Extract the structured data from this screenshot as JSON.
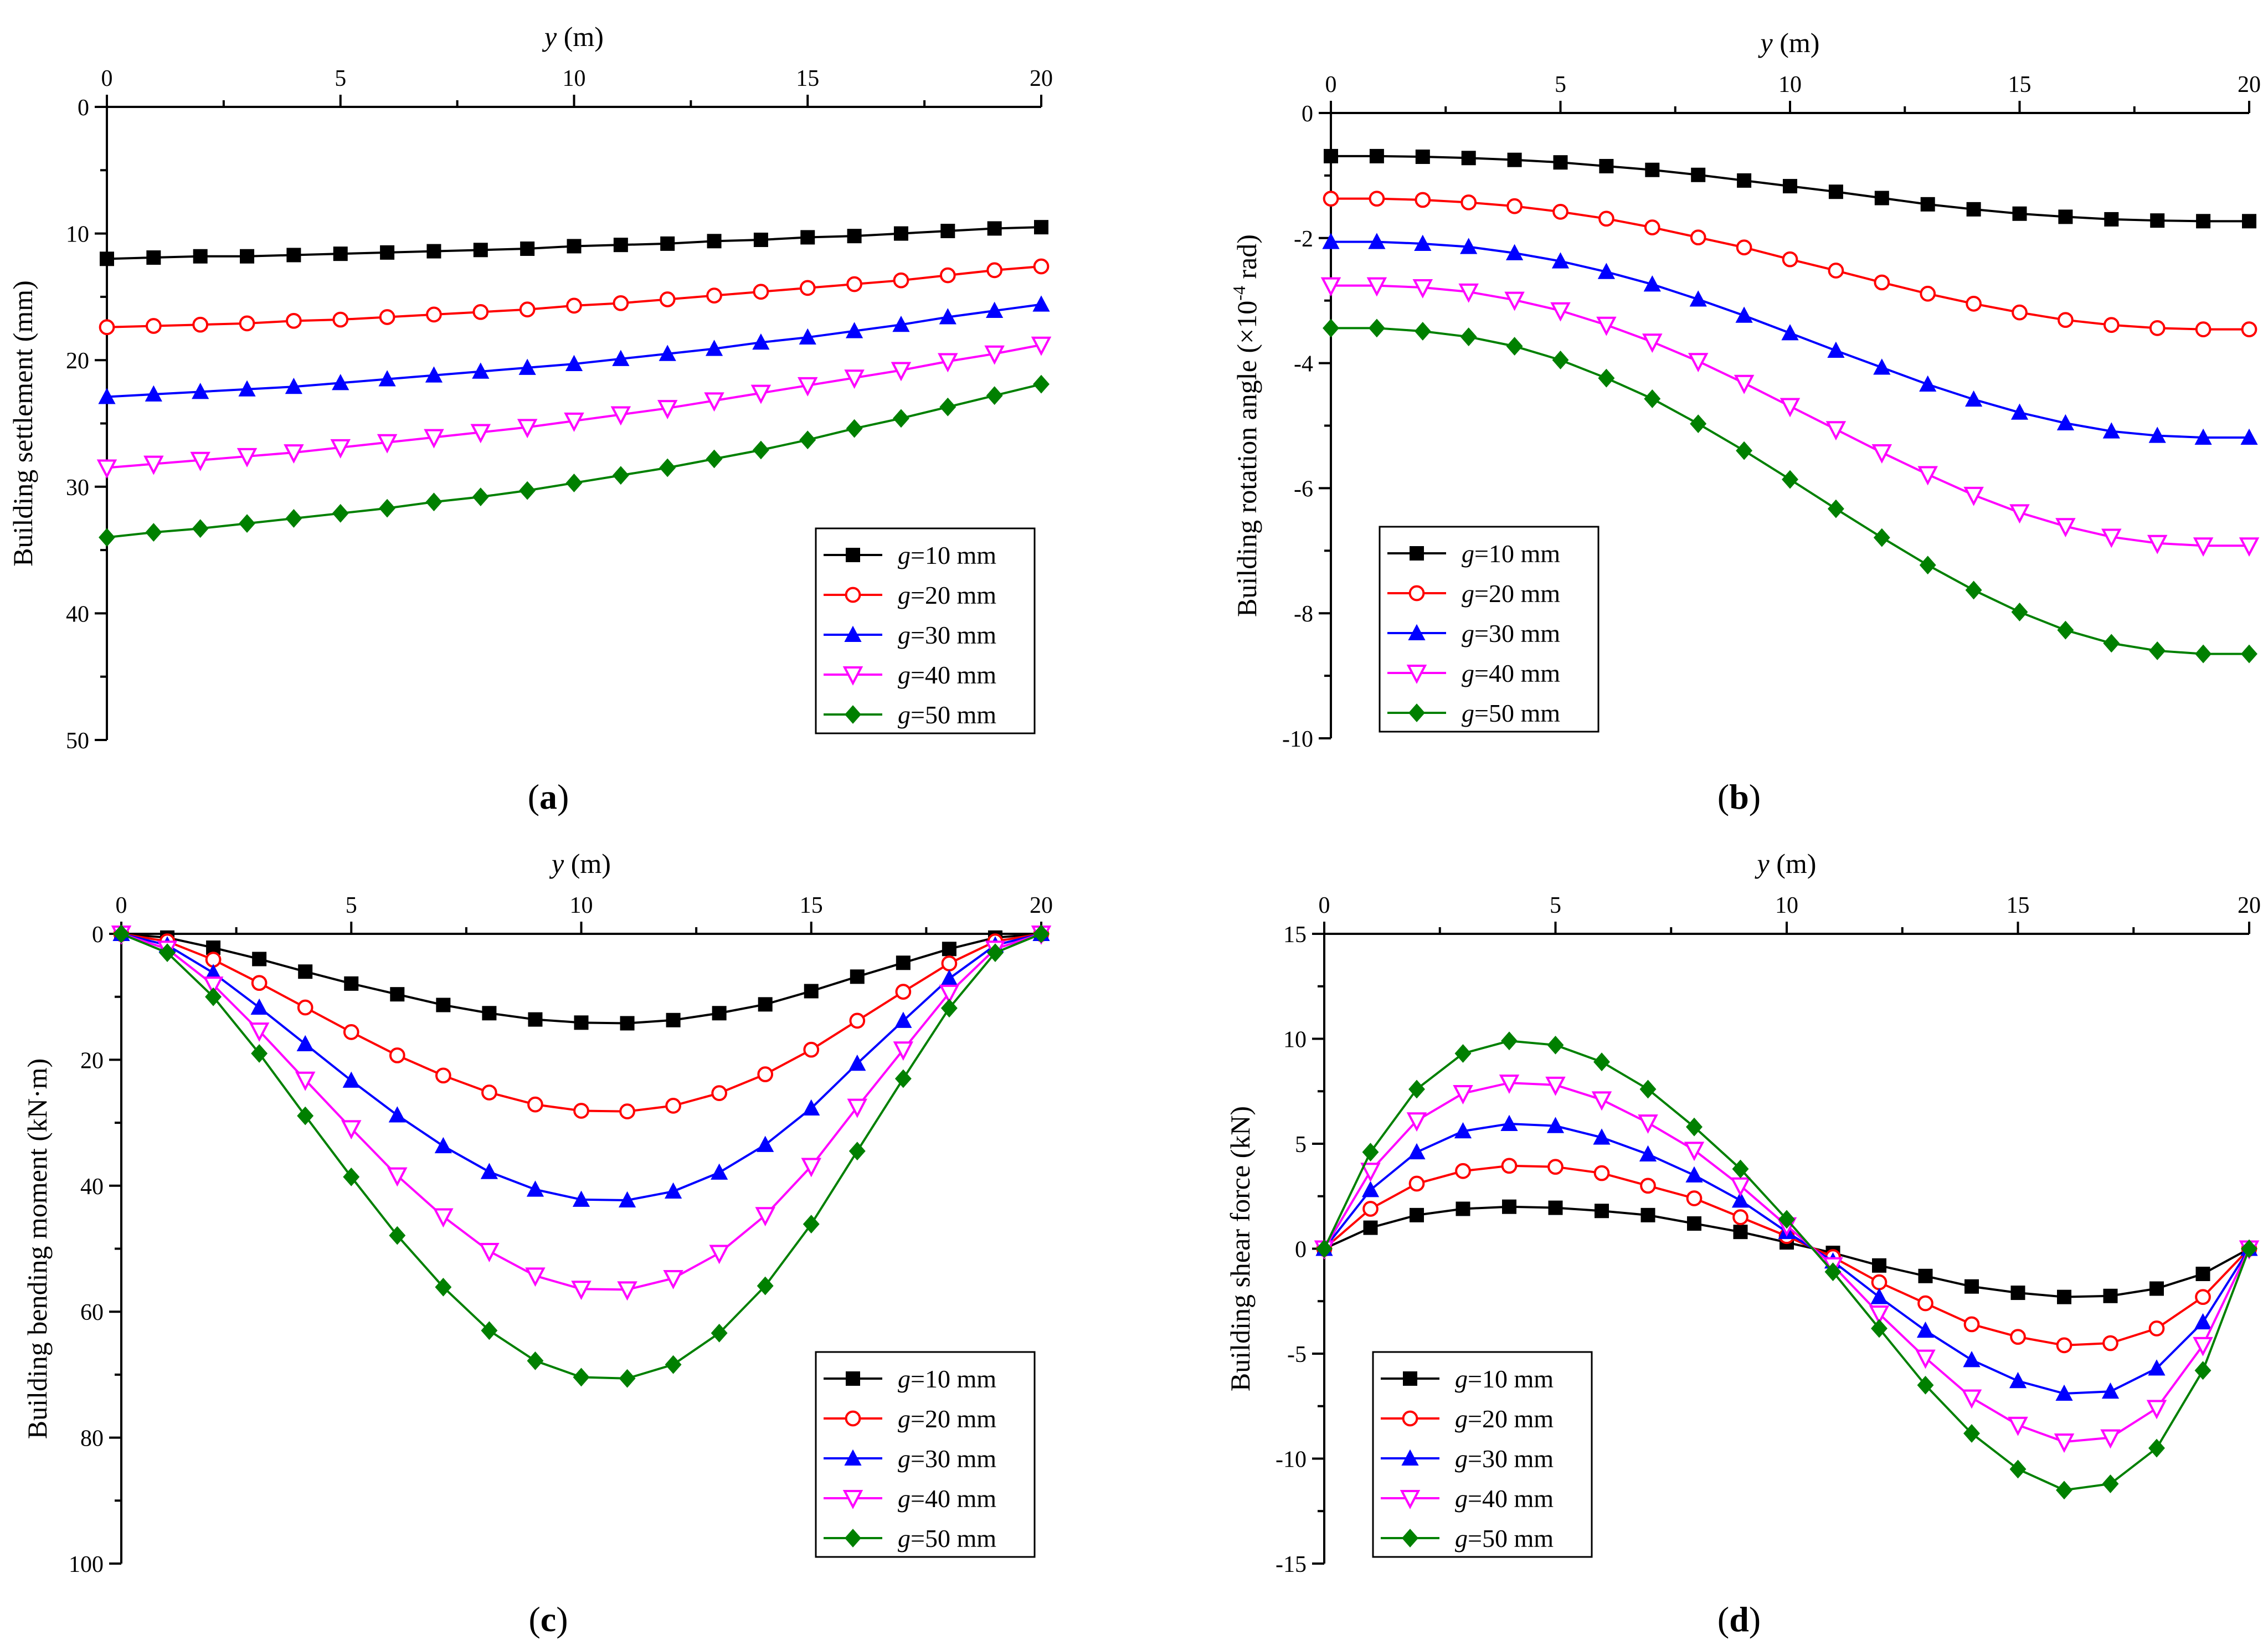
{
  "chart_data": [
    {
      "type": "line",
      "panel_label": "a",
      "title": "",
      "xlabel": "y",
      "xunit": " (m)",
      "ylabel": "Building settlement (mm)",
      "xlim": [
        0,
        20
      ],
      "ylim": [
        0,
        50
      ],
      "y_inverted": true,
      "x_ticks": [
        0,
        5,
        10,
        15,
        20
      ],
      "y_ticks": [
        0,
        10,
        20,
        30,
        40,
        50
      ],
      "legend_position": "bottom-right",
      "x": [
        0,
        1,
        2,
        3,
        4,
        5,
        6,
        7,
        8,
        9,
        10,
        11,
        12,
        13,
        14,
        15,
        16,
        17,
        18,
        19,
        20
      ],
      "series": [
        {
          "name": "g",
          "name_rest": "=10 mm",
          "color": "#000000",
          "marker": "square",
          "values": [
            12.0,
            11.9,
            11.8,
            11.8,
            11.7,
            11.6,
            11.5,
            11.4,
            11.3,
            11.2,
            11.0,
            10.9,
            10.8,
            10.6,
            10.5,
            10.3,
            10.2,
            10.0,
            9.8,
            9.6,
            9.5
          ]
        },
        {
          "name": "g",
          "name_rest": "=20 mm",
          "color": "#ff0000",
          "marker": "circle",
          "values": [
            17.4,
            17.3,
            17.2,
            17.1,
            16.9,
            16.8,
            16.6,
            16.4,
            16.2,
            16.0,
            15.7,
            15.5,
            15.2,
            14.9,
            14.6,
            14.3,
            14.0,
            13.7,
            13.3,
            12.9,
            12.6
          ]
        },
        {
          "name": "g",
          "name_rest": "=30 mm",
          "color": "#0000ff",
          "marker": "triangle-up",
          "values": [
            22.9,
            22.7,
            22.5,
            22.3,
            22.1,
            21.8,
            21.5,
            21.2,
            20.9,
            20.6,
            20.3,
            19.9,
            19.5,
            19.1,
            18.6,
            18.2,
            17.7,
            17.2,
            16.6,
            16.1,
            15.6
          ]
        },
        {
          "name": "g",
          "name_rest": "=40 mm",
          "color": "#ff00ff",
          "marker": "triangle-down",
          "values": [
            28.5,
            28.2,
            27.9,
            27.6,
            27.3,
            26.9,
            26.5,
            26.1,
            25.7,
            25.3,
            24.8,
            24.3,
            23.8,
            23.2,
            22.6,
            22.0,
            21.4,
            20.8,
            20.1,
            19.5,
            18.8
          ]
        },
        {
          "name": "g",
          "name_rest": "=50 mm",
          "color": "#008000",
          "marker": "diamond",
          "values": [
            34.0,
            33.6,
            33.3,
            32.9,
            32.5,
            32.1,
            31.7,
            31.2,
            30.8,
            30.3,
            29.7,
            29.1,
            28.5,
            27.8,
            27.1,
            26.3,
            25.4,
            24.6,
            23.7,
            22.8,
            21.9
          ]
        }
      ]
    },
    {
      "type": "line",
      "panel_label": "b",
      "title": "",
      "xlabel": "y",
      "xunit": " (m)",
      "ylabel_pre": "Building rotation angle (×10",
      "ylabel_sup": "-4",
      "ylabel_post": " rad)",
      "xlim": [
        0,
        20
      ],
      "ylim": [
        -10,
        0
      ],
      "y_inverted": false,
      "x_ticks": [
        0,
        5,
        10,
        15,
        20
      ],
      "y_ticks": [
        0,
        -2,
        -4,
        -6,
        -8,
        -10
      ],
      "legend_position": "bottom-left",
      "x": [
        0,
        1,
        2,
        3,
        4,
        5,
        6,
        7,
        8,
        9,
        10,
        11,
        12,
        13,
        14,
        15,
        16,
        17,
        18,
        19,
        20
      ],
      "series": [
        {
          "name": "g",
          "name_rest": "=10 mm",
          "color": "#000000",
          "marker": "square",
          "values": [
            -0.69,
            -0.69,
            -0.7,
            -0.72,
            -0.75,
            -0.79,
            -0.85,
            -0.91,
            -0.99,
            -1.08,
            -1.17,
            -1.26,
            -1.36,
            -1.46,
            -1.54,
            -1.61,
            -1.66,
            -1.7,
            -1.72,
            -1.73,
            -1.73
          ]
        },
        {
          "name": "g",
          "name_rest": "=20 mm",
          "color": "#ff0000",
          "marker": "circle",
          "values": [
            -1.37,
            -1.37,
            -1.39,
            -1.43,
            -1.49,
            -1.58,
            -1.69,
            -1.83,
            -1.99,
            -2.15,
            -2.34,
            -2.52,
            -2.71,
            -2.89,
            -3.05,
            -3.19,
            -3.31,
            -3.39,
            -3.44,
            -3.46,
            -3.46
          ]
        },
        {
          "name": "g",
          "name_rest": "=30 mm",
          "color": "#0000ff",
          "marker": "triangle-up",
          "values": [
            -2.06,
            -2.06,
            -2.09,
            -2.14,
            -2.24,
            -2.37,
            -2.54,
            -2.74,
            -2.98,
            -3.24,
            -3.52,
            -3.8,
            -4.07,
            -4.34,
            -4.58,
            -4.79,
            -4.96,
            -5.09,
            -5.16,
            -5.19,
            -5.19
          ]
        },
        {
          "name": "g",
          "name_rest": "=40 mm",
          "color": "#ff00ff",
          "marker": "triangle-down",
          "values": [
            -2.76,
            -2.76,
            -2.79,
            -2.86,
            -2.99,
            -3.16,
            -3.39,
            -3.66,
            -3.97,
            -4.32,
            -4.69,
            -5.06,
            -5.43,
            -5.78,
            -6.11,
            -6.39,
            -6.61,
            -6.78,
            -6.88,
            -6.92,
            -6.92
          ]
        },
        {
          "name": "g",
          "name_rest": "=50 mm",
          "color": "#008000",
          "marker": "diamond",
          "values": [
            -3.44,
            -3.44,
            -3.49,
            -3.58,
            -3.73,
            -3.95,
            -4.24,
            -4.57,
            -4.97,
            -5.4,
            -5.86,
            -6.33,
            -6.79,
            -7.23,
            -7.63,
            -7.98,
            -8.27,
            -8.48,
            -8.6,
            -8.65,
            -8.65
          ]
        }
      ]
    },
    {
      "type": "line",
      "panel_label": "c",
      "title": "",
      "xlabel": "y",
      "xunit": " (m)",
      "ylabel": "Building bending moment (kN·m)",
      "xlim": [
        0,
        20
      ],
      "ylim": [
        0,
        100
      ],
      "y_inverted": true,
      "x_ticks": [
        0,
        5,
        10,
        15,
        20
      ],
      "y_ticks": [
        0,
        20,
        40,
        60,
        80,
        100
      ],
      "legend_position": "bottom-right",
      "x": [
        0,
        1,
        2,
        3,
        4,
        5,
        6,
        7,
        8,
        9,
        10,
        11,
        12,
        13,
        14,
        15,
        16,
        17,
        18,
        19,
        20
      ],
      "series": [
        {
          "name": "g",
          "name_rest": "=10 mm",
          "color": "#000000",
          "marker": "square",
          "values": [
            0,
            0.6,
            2.2,
            4.0,
            6.0,
            7.9,
            9.6,
            11.3,
            12.6,
            13.6,
            14.1,
            14.2,
            13.7,
            12.6,
            11.2,
            9.1,
            6.8,
            4.6,
            2.4,
            0.6,
            0
          ]
        },
        {
          "name": "g",
          "name_rest": "=20 mm",
          "color": "#ff0000",
          "marker": "circle",
          "values": [
            0,
            1.2,
            4.1,
            7.8,
            11.7,
            15.6,
            19.3,
            22.5,
            25.2,
            27.1,
            28.1,
            28.2,
            27.3,
            25.3,
            22.3,
            18.4,
            13.8,
            9.2,
            4.7,
            1.2,
            0
          ]
        },
        {
          "name": "g",
          "name_rest": "=30 mm",
          "color": "#0000ff",
          "marker": "triangle-up",
          "values": [
            0,
            1.8,
            6.2,
            11.7,
            17.5,
            23.3,
            28.8,
            33.7,
            37.8,
            40.6,
            42.2,
            42.3,
            40.9,
            37.9,
            33.5,
            27.7,
            20.6,
            13.8,
            7.1,
            1.8,
            0
          ]
        },
        {
          "name": "g",
          "name_rest": "=40 mm",
          "color": "#ff00ff",
          "marker": "triangle-down",
          "values": [
            0,
            2.4,
            8.1,
            15.4,
            23.2,
            30.9,
            38.4,
            44.9,
            50.4,
            54.3,
            56.4,
            56.5,
            54.7,
            50.7,
            44.7,
            36.9,
            27.5,
            18.4,
            9.4,
            2.4,
            0
          ]
        },
        {
          "name": "g",
          "name_rest": "=50 mm",
          "color": "#008000",
          "marker": "diamond",
          "values": [
            0,
            3.0,
            10.0,
            19.0,
            28.9,
            38.6,
            47.9,
            56.1,
            63.0,
            67.8,
            70.4,
            70.6,
            68.4,
            63.4,
            55.9,
            46.1,
            34.5,
            23.0,
            11.8,
            3.0,
            0
          ]
        }
      ]
    },
    {
      "type": "line",
      "panel_label": "d",
      "title": "",
      "xlabel": "y",
      "xunit": " (m)",
      "ylabel": "Building shear force (kN)",
      "xlim": [
        0,
        20
      ],
      "ylim": [
        -15,
        15
      ],
      "y_inverted": false,
      "x_ticks": [
        0,
        5,
        10,
        15,
        20
      ],
      "y_ticks": [
        15,
        10,
        5,
        0,
        -5,
        -10,
        -15
      ],
      "legend_position": "bottom-left",
      "x": [
        0,
        1,
        2,
        3,
        4,
        5,
        6,
        7,
        8,
        9,
        10,
        11,
        12,
        13,
        14,
        15,
        16,
        17,
        18,
        19,
        20
      ],
      "series": [
        {
          "name": "g",
          "name_rest": "=10 mm",
          "color": "#000000",
          "marker": "square",
          "values": [
            0,
            1.0,
            1.6,
            1.9,
            2.0,
            1.95,
            1.8,
            1.6,
            1.2,
            0.8,
            0.3,
            -0.2,
            -0.8,
            -1.3,
            -1.8,
            -2.1,
            -2.3,
            -2.25,
            -1.9,
            -1.2,
            0
          ]
        },
        {
          "name": "g",
          "name_rest": "=20 mm",
          "color": "#ff0000",
          "marker": "circle",
          "values": [
            0,
            1.9,
            3.1,
            3.7,
            3.95,
            3.9,
            3.6,
            3.0,
            2.4,
            1.5,
            0.6,
            -0.4,
            -1.6,
            -2.6,
            -3.6,
            -4.2,
            -4.6,
            -4.5,
            -3.8,
            -2.3,
            0
          ]
        },
        {
          "name": "g",
          "name_rest": "=30 mm",
          "color": "#0000ff",
          "marker": "triangle-up",
          "values": [
            0,
            2.8,
            4.6,
            5.6,
            5.95,
            5.85,
            5.3,
            4.5,
            3.5,
            2.3,
            0.8,
            -0.6,
            -2.3,
            -3.9,
            -5.3,
            -6.3,
            -6.9,
            -6.8,
            -5.7,
            -3.5,
            0
          ]
        },
        {
          "name": "g",
          "name_rest": "=40 mm",
          "color": "#ff00ff",
          "marker": "triangle-down",
          "values": [
            0,
            3.7,
            6.1,
            7.4,
            7.9,
            7.8,
            7.1,
            6.0,
            4.7,
            3.0,
            1.1,
            -0.8,
            -3.1,
            -5.2,
            -7.1,
            -8.4,
            -9.2,
            -9.0,
            -7.6,
            -4.6,
            0
          ]
        },
        {
          "name": "g",
          "name_rest": "=50 mm",
          "color": "#008000",
          "marker": "diamond",
          "values": [
            0,
            4.6,
            7.6,
            9.3,
            9.9,
            9.7,
            8.9,
            7.6,
            5.8,
            3.8,
            1.4,
            -1.1,
            -3.8,
            -6.5,
            -8.8,
            -10.5,
            -11.5,
            -11.2,
            -9.5,
            -5.8,
            0
          ]
        }
      ]
    }
  ]
}
